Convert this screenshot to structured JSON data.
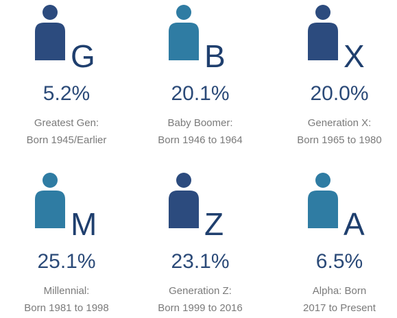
{
  "items": [
    {
      "letter": "G",
      "value": "5.2%",
      "label": [
        "Greatest Gen:",
        "Born 1945/Earlier"
      ]
    },
    {
      "letter": "B",
      "value": "20.1%",
      "label": [
        "Baby Boomer:",
        "Born 1946 to 1964"
      ]
    },
    {
      "letter": "X",
      "value": "20.0%",
      "label": [
        "Generation X:",
        "Born 1965 to 1980"
      ]
    },
    {
      "letter": "M",
      "value": "25.1%",
      "label": [
        "Millennial:",
        "Born 1981 to 1998"
      ]
    },
    {
      "letter": "Z",
      "value": "23.1%",
      "label": [
        "Generation Z:",
        "Born 1999 to 2016"
      ]
    },
    {
      "letter": "A",
      "value": "6.5%",
      "label": [
        "Alpha:  Born",
        "2017 to Present"
      ]
    }
  ]
}
